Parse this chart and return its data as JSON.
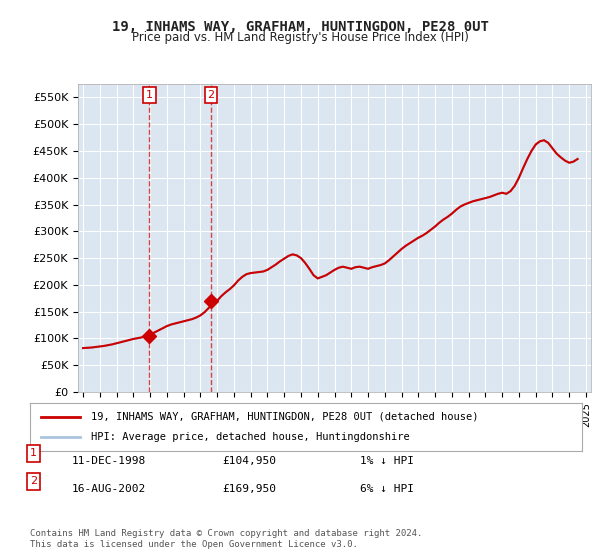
{
  "title": "19, INHAMS WAY, GRAFHAM, HUNTINGDON, PE28 0UT",
  "subtitle": "Price paid vs. HM Land Registry's House Price Index (HPI)",
  "ylabel": "",
  "ylim": [
    0,
    575000
  ],
  "yticks": [
    0,
    50000,
    100000,
    150000,
    200000,
    250000,
    300000,
    350000,
    400000,
    450000,
    500000,
    550000
  ],
  "ytick_labels": [
    "£0",
    "£50K",
    "£100K",
    "£150K",
    "£200K",
    "£250K",
    "£300K",
    "£350K",
    "£400K",
    "£450K",
    "£500K",
    "£550K"
  ],
  "background_color": "#ffffff",
  "plot_bg_color": "#dce6f1",
  "grid_color": "#ffffff",
  "hpi_color": "#aac4e0",
  "price_color": "#cc0000",
  "transaction1": {
    "date": "11-DEC-1998",
    "price": 104950,
    "label": "1",
    "pct": "1% ↓ HPI"
  },
  "transaction2": {
    "date": "16-AUG-2002",
    "price": 169950,
    "label": "2",
    "pct": "6% ↓ HPI"
  },
  "legend_label_price": "19, INHAMS WAY, GRAFHAM, HUNTINGDON, PE28 0UT (detached house)",
  "legend_label_hpi": "HPI: Average price, detached house, Huntingdonshire",
  "footer": "Contains HM Land Registry data © Crown copyright and database right 2024.\nThis data is licensed under the Open Government Licence v3.0.",
  "x_start_year": 1995,
  "x_end_year": 2025,
  "hpi_data": {
    "years": [
      1995.0,
      1995.25,
      1995.5,
      1995.75,
      1996.0,
      1996.25,
      1996.5,
      1996.75,
      1997.0,
      1997.25,
      1997.5,
      1997.75,
      1998.0,
      1998.25,
      1998.5,
      1998.75,
      1999.0,
      1999.25,
      1999.5,
      1999.75,
      2000.0,
      2000.25,
      2000.5,
      2000.75,
      2001.0,
      2001.25,
      2001.5,
      2001.75,
      2002.0,
      2002.25,
      2002.5,
      2002.75,
      2003.0,
      2003.25,
      2003.5,
      2003.75,
      2004.0,
      2004.25,
      2004.5,
      2004.75,
      2005.0,
      2005.25,
      2005.5,
      2005.75,
      2006.0,
      2006.25,
      2006.5,
      2006.75,
      2007.0,
      2007.25,
      2007.5,
      2007.75,
      2008.0,
      2008.25,
      2008.5,
      2008.75,
      2009.0,
      2009.25,
      2009.5,
      2009.75,
      2010.0,
      2010.25,
      2010.5,
      2010.75,
      2011.0,
      2011.25,
      2011.5,
      2011.75,
      2012.0,
      2012.25,
      2012.5,
      2012.75,
      2013.0,
      2013.25,
      2013.5,
      2013.75,
      2014.0,
      2014.25,
      2014.5,
      2014.75,
      2015.0,
      2015.25,
      2015.5,
      2015.75,
      2016.0,
      2016.25,
      2016.5,
      2016.75,
      2017.0,
      2017.25,
      2017.5,
      2017.75,
      2018.0,
      2018.25,
      2018.5,
      2018.75,
      2019.0,
      2019.25,
      2019.5,
      2019.75,
      2020.0,
      2020.25,
      2020.5,
      2020.75,
      2021.0,
      2021.25,
      2021.5,
      2021.75,
      2022.0,
      2022.25,
      2022.5,
      2022.75,
      2023.0,
      2023.25,
      2023.5,
      2023.75,
      2024.0,
      2024.25,
      2024.5
    ],
    "values": [
      82000,
      82500,
      83000,
      84000,
      85000,
      86000,
      87500,
      89000,
      91000,
      93000,
      95000,
      97000,
      99000,
      100500,
      102000,
      104000,
      107000,
      111000,
      115000,
      119000,
      123000,
      126000,
      128000,
      130000,
      132000,
      134000,
      136000,
      139000,
      143000,
      149000,
      157000,
      165000,
      172000,
      179000,
      186000,
      192000,
      199000,
      208000,
      215000,
      220000,
      222000,
      223000,
      224000,
      225000,
      228000,
      233000,
      238000,
      244000,
      249000,
      254000,
      257000,
      255000,
      250000,
      241000,
      230000,
      218000,
      212000,
      215000,
      218000,
      223000,
      228000,
      232000,
      234000,
      232000,
      230000,
      233000,
      234000,
      232000,
      230000,
      233000,
      235000,
      237000,
      240000,
      246000,
      253000,
      260000,
      267000,
      273000,
      278000,
      283000,
      288000,
      292000,
      297000,
      303000,
      309000,
      316000,
      322000,
      327000,
      333000,
      340000,
      346000,
      350000,
      353000,
      356000,
      358000,
      360000,
      362000,
      364000,
      367000,
      370000,
      372000,
      370000,
      375000,
      385000,
      400000,
      418000,
      435000,
      450000,
      462000,
      468000,
      470000,
      465000,
      455000,
      445000,
      438000,
      432000,
      428000,
      430000,
      435000
    ]
  },
  "price_data": {
    "years": [
      1995.0,
      1995.25,
      1995.5,
      1995.75,
      1996.0,
      1996.25,
      1996.5,
      1996.75,
      1997.0,
      1997.25,
      1997.5,
      1997.75,
      1998.0,
      1998.25,
      1998.5,
      1998.75,
      1999.0,
      1999.25,
      1999.5,
      1999.75,
      2000.0,
      2000.25,
      2000.5,
      2000.75,
      2001.0,
      2001.25,
      2001.5,
      2001.75,
      2002.0,
      2002.25,
      2002.5,
      2002.75,
      2003.0,
      2003.25,
      2003.5,
      2003.75,
      2004.0,
      2004.25,
      2004.5,
      2004.75,
      2005.0,
      2005.25,
      2005.5,
      2005.75,
      2006.0,
      2006.25,
      2006.5,
      2006.75,
      2007.0,
      2007.25,
      2007.5,
      2007.75,
      2008.0,
      2008.25,
      2008.5,
      2008.75,
      2009.0,
      2009.25,
      2009.5,
      2009.75,
      2010.0,
      2010.25,
      2010.5,
      2010.75,
      2011.0,
      2011.25,
      2011.5,
      2011.75,
      2012.0,
      2012.25,
      2012.5,
      2012.75,
      2013.0,
      2013.25,
      2013.5,
      2013.75,
      2014.0,
      2014.25,
      2014.5,
      2014.75,
      2015.0,
      2015.25,
      2015.5,
      2015.75,
      2016.0,
      2016.25,
      2016.5,
      2016.75,
      2017.0,
      2017.25,
      2017.5,
      2017.75,
      2018.0,
      2018.25,
      2018.5,
      2018.75,
      2019.0,
      2019.25,
      2019.5,
      2019.75,
      2020.0,
      2020.25,
      2020.5,
      2020.75,
      2021.0,
      2021.25,
      2021.5,
      2021.75,
      2022.0,
      2022.25,
      2022.5,
      2022.75,
      2023.0,
      2023.25,
      2023.5,
      2023.75,
      2024.0,
      2024.25,
      2024.5
    ],
    "values": [
      82000,
      82500,
      83000,
      84000,
      85000,
      86000,
      87500,
      89000,
      91000,
      93000,
      95000,
      97000,
      99000,
      100500,
      102000,
      104950,
      107000,
      111000,
      115000,
      119000,
      123000,
      126000,
      128000,
      130000,
      132000,
      134000,
      136000,
      139000,
      143000,
      149000,
      157000,
      165000,
      169950,
      179000,
      186000,
      192000,
      199000,
      208000,
      215000,
      220000,
      222000,
      223000,
      224000,
      225000,
      228000,
      233000,
      238000,
      244000,
      249000,
      254000,
      257000,
      255000,
      250000,
      241000,
      230000,
      218000,
      212000,
      215000,
      218000,
      223000,
      228000,
      232000,
      234000,
      232000,
      230000,
      233000,
      234000,
      232000,
      230000,
      233000,
      235000,
      237000,
      240000,
      246000,
      253000,
      260000,
      267000,
      273000,
      278000,
      283000,
      288000,
      292000,
      297000,
      303000,
      309000,
      316000,
      322000,
      327000,
      333000,
      340000,
      346000,
      350000,
      353000,
      356000,
      358000,
      360000,
      362000,
      364000,
      367000,
      370000,
      372000,
      370000,
      375000,
      385000,
      400000,
      418000,
      435000,
      450000,
      462000,
      468000,
      470000,
      465000,
      455000,
      445000,
      438000,
      432000,
      428000,
      430000,
      435000
    ]
  }
}
